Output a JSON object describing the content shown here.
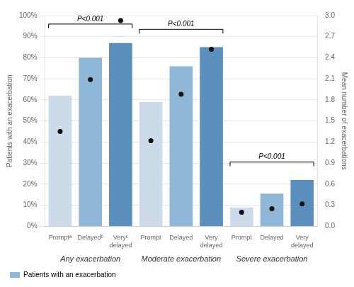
{
  "chart_data": {
    "type": "bar",
    "categories": [
      "Promptᵃ",
      "Delayedᵇ",
      "Veryᶜ\ndelayed",
      "Prompt",
      "Delayed",
      "Very\ndelayed",
      "Prompt",
      "Delayed",
      "Very\ndelayed"
    ],
    "groups": [
      "Any exacerbation",
      "Moderate exacerbation",
      "Severe exacerbation"
    ],
    "series": [
      {
        "name": "Patients with an exacerbation",
        "type": "bar",
        "color": "#8fb8d8",
        "colors": [
          "#ccdaea",
          "#8fb8d8",
          "#5b8fbe",
          "#ccdaea",
          "#8fb8d8",
          "#5b8fbe",
          "#ccdaea",
          "#8fb8d8",
          "#5b8fbe"
        ],
        "values": [
          0.62,
          0.8,
          0.87,
          0.59,
          0.76,
          0.85,
          0.09,
          0.155,
          0.22
        ]
      },
      {
        "type": "scatter",
        "marker": "circle",
        "color": "#111111",
        "axis": "y2",
        "values": [
          1.35,
          2.09,
          2.93,
          1.22,
          1.88,
          2.52,
          0.2,
          0.25,
          0.32
        ]
      }
    ],
    "ylabel": "Patients with an exacerbation",
    "y2label": "Mean number of exacerbations",
    "ylim": [
      0.0,
      1.0
    ],
    "yticks": [
      {
        "value": 0.0,
        "label": "0%"
      },
      {
        "value": 0.1,
        "label": "10%"
      },
      {
        "value": 0.2,
        "label": "20%"
      },
      {
        "value": 0.3,
        "label": "30%"
      },
      {
        "value": 0.4,
        "label": "40%"
      },
      {
        "value": 0.5,
        "label": "50%"
      },
      {
        "value": 0.6,
        "label": "60%"
      },
      {
        "value": 0.7,
        "label": "70%"
      },
      {
        "value": 0.8,
        "label": "80%"
      },
      {
        "value": 0.9,
        "label": "90%"
      },
      {
        "value": 1.0,
        "label": "100%"
      }
    ],
    "y2lim": [
      0.0,
      3.0
    ],
    "y2ticks": [
      {
        "value": 0.0,
        "label": "0.0"
      },
      0.3,
      0.6,
      0.9,
      1.2,
      1.5,
      1.8,
      2.1,
      2.4,
      2.7,
      {
        "value": 3.0,
        "label": "3.0"
      }
    ],
    "grid": true,
    "legend": "lower left",
    "annotations": [
      {
        "text": "P<0.001",
        "group": "Any exacerbation",
        "y": 0.96
      },
      {
        "text": "P<0.001",
        "group": "Moderate exacerbation",
        "y": 0.935
      },
      {
        "text": "P<0.001",
        "group": "Severe exacerbation",
        "y": 0.305
      }
    ]
  }
}
